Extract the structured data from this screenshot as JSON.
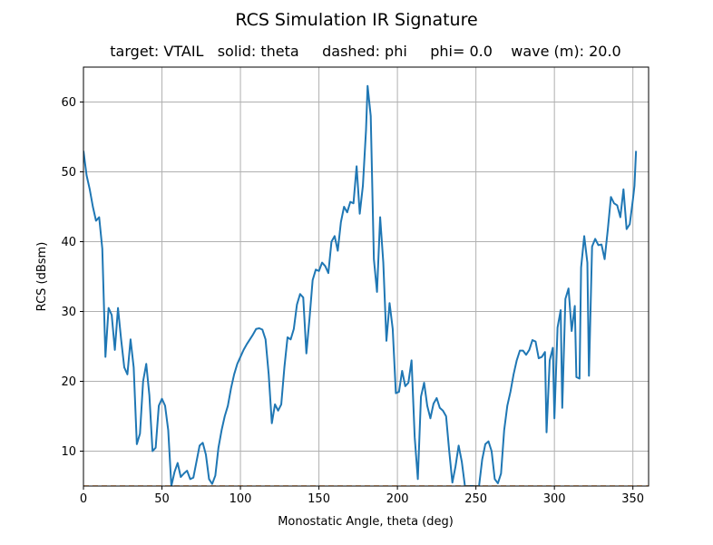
{
  "chart_data": {
    "type": "line",
    "title": "RCS Simulation IR Signature",
    "subtitle": "target: VTAIL   solid: theta     dashed: phi     phi= 0.0    wave (m): 20.0",
    "xlabel": "Monostatic Angle, theta (deg)",
    "ylabel": "RCS (dBsm)",
    "xlim": [
      0,
      360
    ],
    "ylim": [
      5,
      65
    ],
    "xticks": [
      0,
      50,
      100,
      150,
      200,
      250,
      300,
      350
    ],
    "yticks": [
      10,
      20,
      30,
      40,
      50,
      60
    ],
    "xtick_labels": [
      "0",
      "50",
      "100",
      "150",
      "200",
      "250",
      "300",
      "350"
    ],
    "ytick_labels": [
      "10",
      "20",
      "30",
      "40",
      "50",
      "60"
    ],
    "grid": true,
    "legend": "none",
    "series": [
      {
        "style": "solid",
        "color": "#1f77b4",
        "points": [
          [
            0,
            53
          ],
          [
            2,
            49.5
          ],
          [
            4,
            47.5
          ],
          [
            6,
            45
          ],
          [
            8,
            43
          ],
          [
            10,
            43.5
          ],
          [
            12,
            39
          ],
          [
            14,
            23.5
          ],
          [
            16,
            30.5
          ],
          [
            18,
            29.5
          ],
          [
            20,
            24.5
          ],
          [
            22,
            30.5
          ],
          [
            24,
            26
          ],
          [
            26,
            22
          ],
          [
            28,
            21
          ],
          [
            30,
            26
          ],
          [
            32,
            22
          ],
          [
            34,
            11
          ],
          [
            36,
            12.5
          ],
          [
            38,
            20
          ],
          [
            40,
            22.5
          ],
          [
            42,
            18
          ],
          [
            44,
            10
          ],
          [
            46,
            10.5
          ],
          [
            48,
            16.5
          ],
          [
            50,
            17.5
          ],
          [
            52,
            16.5
          ],
          [
            54,
            13
          ],
          [
            56,
            5
          ],
          [
            58,
            7
          ],
          [
            60,
            8.3
          ],
          [
            62,
            6.3
          ],
          [
            64,
            6.8
          ],
          [
            66,
            7.2
          ],
          [
            68,
            6
          ],
          [
            70,
            6.2
          ],
          [
            72,
            8.5
          ],
          [
            74,
            10.8
          ],
          [
            76,
            11.2
          ],
          [
            78,
            9.5
          ],
          [
            80,
            6
          ],
          [
            82,
            5.3
          ],
          [
            84,
            6.5
          ],
          [
            86,
            10.5
          ],
          [
            88,
            13
          ],
          [
            90,
            15
          ],
          [
            92,
            16.5
          ],
          [
            94,
            19
          ],
          [
            96,
            21
          ],
          [
            98,
            22.5
          ],
          [
            100,
            23.5
          ],
          [
            102,
            24.5
          ],
          [
            104,
            25.3
          ],
          [
            106,
            26
          ],
          [
            108,
            26.7
          ],
          [
            110,
            27.5
          ],
          [
            112,
            27.6
          ],
          [
            114,
            27.4
          ],
          [
            116,
            26
          ],
          [
            118,
            21
          ],
          [
            120,
            14
          ],
          [
            122,
            16.7
          ],
          [
            124,
            15.8
          ],
          [
            126,
            16.7
          ],
          [
            128,
            22
          ],
          [
            130,
            26.3
          ],
          [
            132,
            26
          ],
          [
            134,
            27.5
          ],
          [
            136,
            31
          ],
          [
            138,
            32.5
          ],
          [
            140,
            32
          ],
          [
            142,
            24
          ],
          [
            144,
            29
          ],
          [
            146,
            34.5
          ],
          [
            148,
            36
          ],
          [
            150,
            35.8
          ],
          [
            152,
            37
          ],
          [
            154,
            36.5
          ],
          [
            156,
            35.5
          ],
          [
            158,
            40
          ],
          [
            160,
            40.8
          ],
          [
            162,
            38.7
          ],
          [
            164,
            42.8
          ],
          [
            166,
            45
          ],
          [
            168,
            44.2
          ],
          [
            170,
            45.7
          ],
          [
            172,
            45.5
          ],
          [
            174,
            50.8
          ],
          [
            176,
            44
          ],
          [
            178,
            48
          ],
          [
            180,
            56
          ],
          [
            181,
            62.3
          ],
          [
            183,
            58
          ],
          [
            185,
            37.5
          ],
          [
            187,
            32.8
          ],
          [
            189,
            43.5
          ],
          [
            191,
            37
          ],
          [
            193,
            25.8
          ],
          [
            195,
            31.2
          ],
          [
            197,
            27.5
          ],
          [
            199,
            18.3
          ],
          [
            201,
            18.5
          ],
          [
            203,
            21.5
          ],
          [
            205,
            19.3
          ],
          [
            207,
            19.8
          ],
          [
            209,
            23
          ],
          [
            211,
            12
          ],
          [
            213,
            6
          ],
          [
            215,
            17.8
          ],
          [
            217,
            19.8
          ],
          [
            219,
            16.5
          ],
          [
            221,
            14.7
          ],
          [
            223,
            16.8
          ],
          [
            225,
            17.6
          ],
          [
            227,
            16.2
          ],
          [
            229,
            15.8
          ],
          [
            231,
            15
          ],
          [
            233,
            10
          ],
          [
            235,
            5.5
          ],
          [
            237,
            7.8
          ],
          [
            239,
            10.8
          ],
          [
            241,
            8.5
          ],
          [
            243,
            5
          ],
          [
            252,
            5
          ],
          [
            254,
            8.8
          ],
          [
            256,
            11
          ],
          [
            258,
            11.4
          ],
          [
            260,
            10
          ],
          [
            262,
            6
          ],
          [
            264,
            5.4
          ],
          [
            266,
            6.8
          ],
          [
            268,
            13
          ],
          [
            270,
            16.5
          ],
          [
            272,
            18.5
          ],
          [
            274,
            21
          ],
          [
            276,
            23
          ],
          [
            278,
            24.4
          ],
          [
            280,
            24.4
          ],
          [
            282,
            23.8
          ],
          [
            284,
            24.5
          ],
          [
            286,
            25.9
          ],
          [
            288,
            25.7
          ],
          [
            290,
            23.3
          ],
          [
            292,
            23.5
          ],
          [
            294,
            24.2
          ],
          [
            295,
            12.7
          ],
          [
            297,
            23
          ],
          [
            299,
            24.8
          ],
          [
            300,
            14.7
          ],
          [
            302,
            27.7
          ],
          [
            304,
            30.2
          ],
          [
            305,
            16.2
          ],
          [
            307,
            31.8
          ],
          [
            309,
            33.3
          ],
          [
            311,
            27.2
          ],
          [
            313,
            30.8
          ],
          [
            314,
            20.6
          ],
          [
            316,
            20.4
          ],
          [
            317,
            36.3
          ],
          [
            319,
            40.8
          ],
          [
            321,
            37
          ],
          [
            322,
            20.8
          ],
          [
            324,
            39.3
          ],
          [
            326,
            40.4
          ],
          [
            328,
            39.5
          ],
          [
            330,
            39.6
          ],
          [
            332,
            37.5
          ],
          [
            334,
            41.7
          ],
          [
            336,
            46.4
          ],
          [
            338,
            45.5
          ],
          [
            340,
            45.2
          ],
          [
            342,
            43.5
          ],
          [
            344,
            47.5
          ],
          [
            346,
            41.8
          ],
          [
            348,
            42.5
          ],
          [
            350,
            46
          ],
          [
            351,
            48
          ],
          [
            352,
            53
          ]
        ]
      },
      {
        "style": "dashed",
        "color": "#ff7f0e",
        "points": [
          [
            0,
            5
          ],
          [
            360,
            5
          ]
        ]
      }
    ]
  }
}
